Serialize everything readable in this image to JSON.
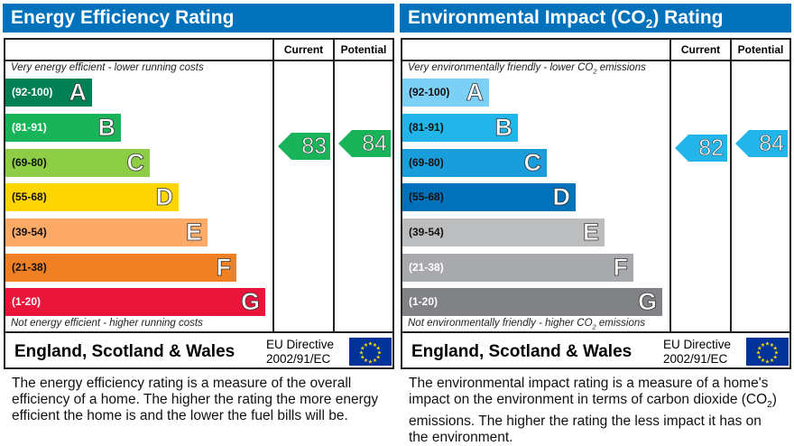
{
  "chart_data": [
    {
      "type": "table",
      "title": "Energy Efficiency Rating",
      "columns": [
        "Current",
        "Potential"
      ],
      "top_note": "Very energy efficient - lower running costs",
      "bottom_note": "Not energy efficient - higher running costs",
      "bands": [
        {
          "range": "(92-100)",
          "letter": "A",
          "color": "#008054",
          "text_color": "#ffffff"
        },
        {
          "range": "(81-91)",
          "letter": "B",
          "color": "#19b459",
          "text_color": "#ffffff"
        },
        {
          "range": "(69-80)",
          "letter": "C",
          "color": "#8dce46",
          "text_color": "#111111"
        },
        {
          "range": "(55-68)",
          "letter": "D",
          "color": "#ffd500",
          "text_color": "#111111"
        },
        {
          "range": "(39-54)",
          "letter": "E",
          "color": "#fcaa65",
          "text_color": "#111111"
        },
        {
          "range": "(21-38)",
          "letter": "F",
          "color": "#ef8023",
          "text_color": "#111111"
        },
        {
          "range": "(1-20)",
          "letter": "G",
          "color": "#e9153b",
          "text_color": "#ffffff"
        }
      ],
      "current": 83,
      "potential": 84,
      "current_color": "#19b459",
      "potential_color": "#19b459",
      "footer": "England, Scotland & Wales",
      "directive_line1": "EU Directive",
      "directive_line2": "2002/91/EC",
      "description": "The energy efficiency rating is a measure of the overall efficiency of a home. The higher the rating the more energy efficient the home is and the lower the fuel bills will be."
    },
    {
      "type": "table",
      "title": "Environmental Impact (CO2) Rating",
      "columns": [
        "Current",
        "Potential"
      ],
      "top_note": "Very environmentally friendly - lower CO2 emissions",
      "bottom_note": "Not environmentally friendly - higher CO2 emissions",
      "bands": [
        {
          "range": "(92-100)",
          "letter": "A",
          "color": "#7ccff5",
          "text_color": "#111111"
        },
        {
          "range": "(81-91)",
          "letter": "B",
          "color": "#22b5ea",
          "text_color": "#111111"
        },
        {
          "range": "(69-80)",
          "letter": "C",
          "color": "#1a9edb",
          "text_color": "#111111"
        },
        {
          "range": "(55-68)",
          "letter": "D",
          "color": "#0072bc",
          "text_color": "#111111"
        },
        {
          "range": "(39-54)",
          "letter": "E",
          "color": "#bbbdbf",
          "text_color": "#111111"
        },
        {
          "range": "(21-38)",
          "letter": "F",
          "color": "#a7a9ac",
          "text_color": "#ffffff"
        },
        {
          "range": "(1-20)",
          "letter": "G",
          "color": "#808285",
          "text_color": "#ffffff"
        }
      ],
      "current": 82,
      "potential": 84,
      "current_color": "#22b5ea",
      "potential_color": "#22b5ea",
      "footer": "England, Scotland & Wales",
      "directive_line1": "EU Directive",
      "directive_line2": "2002/91/EC",
      "description": "The environmental impact rating is a measure of a home's impact on the environment in terms of carbon dioxide (CO2) emissions. The higher the rating the less impact it has on the environment."
    }
  ]
}
